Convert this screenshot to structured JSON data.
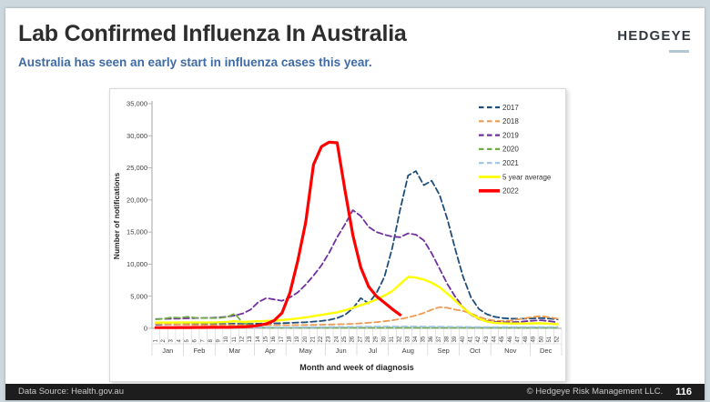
{
  "slide": {
    "title": "Lab Confirmed Influenza In Australia",
    "subtitle": "Australia has seen an early start in influenza cases this year.",
    "logo": "HEDGEYE",
    "footer": {
      "left": "Data Source: Health.gov.au",
      "right": "© Hedgeye Risk Management LLC.",
      "page": "116"
    }
  },
  "colors": {
    "page_background": "#ccd8de",
    "subtitle_text": "#3e6ba5",
    "footer_background": "#1d1d1d",
    "logo_underline": "#b6c7d4",
    "axis_line": "#a6a6a6",
    "axis_text": "#404040"
  },
  "chart_data": {
    "type": "line",
    "title": "",
    "xlabel": "Month and week of diagnosis",
    "ylabel": "Number of notifications",
    "ylim": [
      0,
      35000
    ],
    "yticks": [
      0,
      5000,
      10000,
      15000,
      20000,
      25000,
      30000,
      35000
    ],
    "grid": false,
    "legend_position": "top-right",
    "week_labels": [
      1,
      2,
      3,
      4,
      5,
      6,
      7,
      8,
      9,
      10,
      11,
      12,
      13,
      14,
      15,
      16,
      17,
      18,
      19,
      20,
      21,
      22,
      23,
      24,
      25,
      26,
      27,
      28,
      29,
      30,
      31,
      32,
      33,
      34,
      35,
      36,
      37,
      38,
      39,
      40,
      41,
      42,
      43,
      44,
      45,
      46,
      47,
      48,
      49,
      50,
      51,
      52
    ],
    "months": [
      {
        "label": "Jan",
        "weeks": 4
      },
      {
        "label": "Feb",
        "weeks": 4
      },
      {
        "label": "Mar",
        "weeks": 5
      },
      {
        "label": "Apr",
        "weeks": 4
      },
      {
        "label": "May",
        "weeks": 5
      },
      {
        "label": "Jun",
        "weeks": 4
      },
      {
        "label": "Jul",
        "weeks": 4
      },
      {
        "label": "Aug",
        "weeks": 5
      },
      {
        "label": "Sep",
        "weeks": 4
      },
      {
        "label": "Oct",
        "weeks": 4
      },
      {
        "label": "Nov",
        "weeks": 5
      },
      {
        "label": "Dec",
        "weeks": 4
      }
    ],
    "series": [
      {
        "name": "2017",
        "color": "#1F4E79",
        "style": "dashed",
        "width": 1.8,
        "values": [
          600,
          600,
          610,
          620,
          640,
          660,
          680,
          700,
          700,
          700,
          720,
          700,
          700,
          720,
          750,
          780,
          800,
          850,
          900,
          950,
          1050,
          1150,
          1300,
          1600,
          2100,
          3100,
          4700,
          3900,
          5500,
          8000,
          12500,
          18500,
          23800,
          24500,
          22300,
          23000,
          20800,
          17000,
          12300,
          8000,
          4800,
          3000,
          2200,
          1800,
          1600,
          1500,
          1500,
          1500,
          1550,
          1600,
          1500,
          1400
        ]
      },
      {
        "name": "2018",
        "color": "#ED9B53",
        "style": "dashed",
        "width": 1.8,
        "values": [
          700,
          650,
          600,
          580,
          560,
          550,
          540,
          530,
          520,
          520,
          520,
          510,
          500,
          500,
          490,
          490,
          490,
          500,
          510,
          520,
          540,
          560,
          590,
          620,
          660,
          710,
          780,
          860,
          960,
          1100,
          1250,
          1450,
          1700,
          2000,
          2400,
          2900,
          3300,
          3200,
          2900,
          2700,
          2300,
          1800,
          1400,
          1200,
          1150,
          1200,
          1400,
          1600,
          1800,
          1900,
          1700,
          1500
        ]
      },
      {
        "name": "2019",
        "color": "#7030A0",
        "style": "dashed",
        "width": 1.8,
        "values": [
          1450,
          1480,
          1500,
          1520,
          1560,
          1600,
          1620,
          1650,
          1700,
          1800,
          2000,
          2300,
          2900,
          4100,
          4700,
          4500,
          4300,
          4800,
          5600,
          6800,
          8200,
          9800,
          11800,
          14200,
          16200,
          18400,
          17500,
          15800,
          15000,
          14600,
          14300,
          14200,
          14800,
          14600,
          13700,
          11700,
          9300,
          6900,
          4900,
          3300,
          2100,
          1400,
          1150,
          1000,
          950,
          950,
          1000,
          1100,
          1200,
          1250,
          1100,
          950
        ]
      },
      {
        "name": "2020",
        "color": "#70AD47",
        "style": "dashed",
        "width": 1.8,
        "values": [
          1400,
          1500,
          1700,
          1650,
          1800,
          1650,
          1600,
          1600,
          1600,
          1750,
          2300,
          900,
          400,
          150,
          100,
          80,
          80,
          80,
          80,
          80,
          80,
          80,
          80,
          80,
          80,
          80,
          80,
          80,
          80,
          80,
          80,
          80,
          80,
          80,
          80,
          80,
          80,
          80,
          80,
          80,
          80,
          80,
          80,
          80,
          80,
          80,
          80,
          80,
          80,
          80,
          80,
          80
        ]
      },
      {
        "name": "2021",
        "color": "#9DC3E6",
        "style": "dashed",
        "width": 1.8,
        "values": [
          150,
          150,
          150,
          150,
          150,
          150,
          150,
          150,
          150,
          150,
          150,
          150,
          150,
          150,
          150,
          150,
          150,
          160,
          170,
          180,
          190,
          200,
          210,
          220,
          230,
          240,
          250,
          260,
          270,
          280,
          280,
          280,
          280,
          280,
          270,
          260,
          250,
          240,
          230,
          220,
          210,
          200,
          200,
          200,
          200,
          200,
          200,
          200,
          200,
          200,
          200,
          200
        ]
      },
      {
        "name": "5 year average",
        "color": "#FFFF00",
        "style": "solid",
        "width": 2.4,
        "values": [
          900,
          900,
          900,
          900,
          900,
          900,
          900,
          900,
          950,
          1000,
          1100,
          1000,
          1050,
          1100,
          1150,
          1200,
          1300,
          1400,
          1550,
          1700,
          1900,
          2100,
          2300,
          2500,
          2800,
          3200,
          3600,
          4000,
          4500,
          5100,
          5800,
          6900,
          8000,
          7900,
          7600,
          7100,
          6400,
          5400,
          4300,
          3200,
          2200,
          1500,
          1050,
          850,
          800,
          750,
          750,
          750,
          780,
          780,
          720,
          650
        ]
      },
      {
        "name": "2022",
        "color": "#FF0000",
        "style": "solid",
        "width": 3.2,
        "values": [
          120,
          120,
          120,
          130,
          130,
          140,
          140,
          150,
          150,
          160,
          180,
          220,
          300,
          450,
          700,
          1200,
          2400,
          5500,
          10500,
          16500,
          25500,
          28300,
          29000,
          28900,
          21500,
          14500,
          9500,
          6500,
          5000,
          4000,
          3000,
          2100
        ]
      }
    ]
  }
}
